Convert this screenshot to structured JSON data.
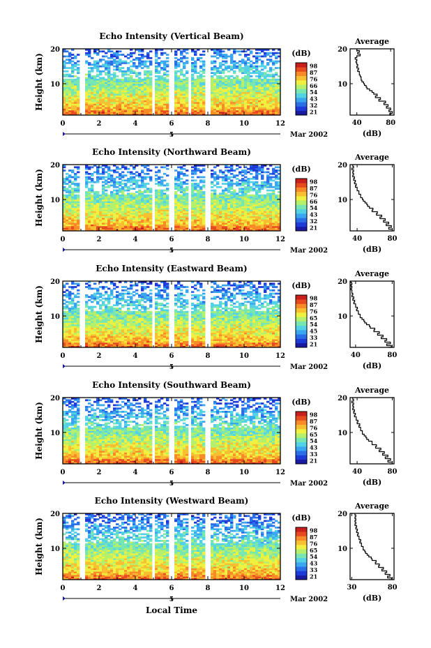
{
  "figure": {
    "xlabel": "Local Time",
    "date_label": "Mar 2002",
    "day_label": "5"
  },
  "chart_data": [
    {
      "type": "heatmap",
      "title": "Echo Intensity (Vertical Beam)",
      "xlabel": "Local Time",
      "ylabel": "Height (km)",
      "xlim": [
        0,
        12
      ],
      "ylim": [
        1,
        20
      ],
      "x_ticks": [
        "0",
        "2",
        "4",
        "6",
        "8",
        "10",
        "12"
      ],
      "y_ticks": [
        "10",
        "20"
      ],
      "colorbar_label": "(dB)",
      "colorbar_ticks": [
        "21",
        "32",
        "43",
        "54",
        "66",
        "76",
        "87",
        "98"
      ],
      "data_gaps_hours": [
        [
          1.0,
          1.2
        ],
        [
          4.9,
          5.1
        ],
        [
          5.9,
          6.1
        ],
        [
          6.9,
          7.1
        ],
        [
          7.9,
          8.1
        ]
      ],
      "profile": {
        "title": "Average",
        "xlabel": "(dB)",
        "xlim": [
          32,
          84
        ],
        "x_ticks": [
          "40",
          "80"
        ],
        "y_ticks": [
          "10",
          "20"
        ],
        "points": [
          [
            80,
            1
          ],
          [
            79,
            1.5
          ],
          [
            82,
            2
          ],
          [
            78,
            2.5
          ],
          [
            80,
            3
          ],
          [
            75,
            3.5
          ],
          [
            77,
            4
          ],
          [
            72,
            4.5
          ],
          [
            74,
            5
          ],
          [
            66,
            5.5
          ],
          [
            68,
            6
          ],
          [
            62,
            6.5
          ],
          [
            64,
            7
          ],
          [
            60,
            7.5
          ],
          [
            58,
            8
          ],
          [
            55,
            8.5
          ],
          [
            52,
            9
          ],
          [
            51,
            9.5
          ],
          [
            49,
            10
          ],
          [
            48,
            10.5
          ],
          [
            46,
            11
          ],
          [
            45,
            11.5
          ],
          [
            45,
            12
          ],
          [
            44,
            12.5
          ],
          [
            43,
            13
          ],
          [
            43,
            13.5
          ],
          [
            41,
            14
          ],
          [
            42,
            14.5
          ],
          [
            40,
            15
          ],
          [
            41,
            15.5
          ],
          [
            40,
            16
          ],
          [
            39,
            16.5
          ],
          [
            40,
            17
          ],
          [
            38,
            17.5
          ],
          [
            40,
            18
          ],
          [
            44,
            18.5
          ],
          [
            41,
            19
          ],
          [
            43,
            19.5
          ],
          [
            40,
            20
          ]
        ]
      }
    },
    {
      "type": "heatmap",
      "title": "Echo Intensity (Northward Beam)",
      "xlabel": "Local Time",
      "ylabel": "Height (km)",
      "xlim": [
        0,
        12
      ],
      "ylim": [
        1,
        20
      ],
      "x_ticks": [
        "0",
        "2",
        "4",
        "6",
        "8",
        "10",
        "12"
      ],
      "y_ticks": [
        "10",
        "20"
      ],
      "colorbar_label": "(dB)",
      "colorbar_ticks": [
        "21",
        "32",
        "43",
        "54",
        "66",
        "76",
        "87",
        "98"
      ],
      "data_gaps_hours": [
        [
          1.0,
          1.2
        ],
        [
          4.9,
          5.1
        ],
        [
          5.9,
          6.1
        ],
        [
          6.9,
          7.1
        ],
        [
          7.9,
          8.1
        ]
      ],
      "profile": {
        "title": "Average",
        "xlabel": "(dB)",
        "xlim": [
          32,
          82
        ],
        "x_ticks": [
          "40",
          "80"
        ],
        "y_ticks": [
          "10",
          "20"
        ],
        "points": [
          [
            78,
            1
          ],
          [
            80,
            1.5
          ],
          [
            76,
            2
          ],
          [
            79,
            2.5
          ],
          [
            73,
            3
          ],
          [
            76,
            3.5
          ],
          [
            70,
            4
          ],
          [
            72,
            4.5
          ],
          [
            66,
            5
          ],
          [
            68,
            5.5
          ],
          [
            62,
            6
          ],
          [
            63,
            6.5
          ],
          [
            57,
            7
          ],
          [
            58,
            7.5
          ],
          [
            54,
            8
          ],
          [
            52,
            8.5
          ],
          [
            51,
            9
          ],
          [
            49,
            9.5
          ],
          [
            47,
            10
          ],
          [
            46,
            10.5
          ],
          [
            44,
            11
          ],
          [
            44,
            11.5
          ],
          [
            42,
            12
          ],
          [
            42,
            12.5
          ],
          [
            40,
            13
          ],
          [
            40,
            13.5
          ],
          [
            38,
            14
          ],
          [
            39,
            14.5
          ],
          [
            37,
            15
          ],
          [
            38,
            15.5
          ],
          [
            36,
            16
          ],
          [
            37,
            16.5
          ],
          [
            35,
            17
          ],
          [
            36,
            17.5
          ],
          [
            35,
            18
          ],
          [
            36,
            18.5
          ],
          [
            34,
            19
          ],
          [
            36,
            19.5
          ],
          [
            35,
            20
          ]
        ]
      }
    },
    {
      "type": "heatmap",
      "title": "Echo Intensity (Eastward Beam)",
      "xlabel": "Local Time",
      "ylabel": "Height (km)",
      "xlim": [
        0,
        12
      ],
      "ylim": [
        1,
        20
      ],
      "x_ticks": [
        "0",
        "2",
        "4",
        "6",
        "8",
        "10",
        "12"
      ],
      "y_ticks": [
        "10",
        "20"
      ],
      "colorbar_label": "(dB)",
      "colorbar_ticks": [
        "21",
        "33",
        "45",
        "54",
        "65",
        "76",
        "87",
        "98"
      ],
      "data_gaps_hours": [
        [
          1.0,
          1.2
        ],
        [
          4.9,
          5.1
        ],
        [
          5.9,
          6.1
        ],
        [
          6.9,
          7.1
        ],
        [
          7.9,
          8.1
        ]
      ],
      "profile": {
        "title": "Average",
        "xlabel": "(dB)",
        "xlim": [
          34,
          82
        ],
        "x_ticks": [
          "40",
          "80"
        ],
        "y_ticks": [
          "10",
          "20"
        ],
        "points": [
          [
            76,
            1
          ],
          [
            79,
            1.5
          ],
          [
            74,
            2
          ],
          [
            78,
            2.5
          ],
          [
            72,
            3
          ],
          [
            74,
            3.5
          ],
          [
            68,
            4
          ],
          [
            70,
            4.5
          ],
          [
            64,
            5
          ],
          [
            66,
            5.5
          ],
          [
            60,
            6
          ],
          [
            61,
            6.5
          ],
          [
            56,
            7
          ],
          [
            55,
            7.5
          ],
          [
            52,
            8
          ],
          [
            50,
            8.5
          ],
          [
            49,
            9
          ],
          [
            47,
            9.5
          ],
          [
            45,
            10
          ],
          [
            45,
            10.5
          ],
          [
            43,
            11
          ],
          [
            43,
            11.5
          ],
          [
            41,
            12
          ],
          [
            42,
            12.5
          ],
          [
            40,
            13
          ],
          [
            40,
            13.5
          ],
          [
            38,
            14
          ],
          [
            39,
            14.5
          ],
          [
            37,
            15
          ],
          [
            38,
            15.5
          ],
          [
            36,
            16
          ],
          [
            37,
            16.5
          ],
          [
            36,
            17
          ],
          [
            36,
            17.5
          ],
          [
            35,
            18
          ],
          [
            36,
            18.5
          ],
          [
            35,
            19
          ],
          [
            36,
            19.5
          ],
          [
            35,
            20
          ]
        ]
      }
    },
    {
      "type": "heatmap",
      "title": "Echo Intensity (Southward Beam)",
      "xlabel": "Local Time",
      "ylabel": "Height (km)",
      "xlim": [
        0,
        12
      ],
      "ylim": [
        1,
        20
      ],
      "x_ticks": [
        "0",
        "2",
        "4",
        "6",
        "8",
        "10",
        "12"
      ],
      "y_ticks": [
        "10",
        "20"
      ],
      "colorbar_label": "(dB)",
      "colorbar_ticks": [
        "21",
        "33",
        "43",
        "54",
        "65",
        "76",
        "87",
        "98"
      ],
      "data_gaps_hours": [
        [
          1.0,
          1.2
        ],
        [
          4.9,
          5.1
        ],
        [
          5.9,
          6.1
        ],
        [
          6.9,
          7.1
        ],
        [
          7.9,
          8.1
        ]
      ],
      "profile": {
        "title": "Average",
        "xlabel": "(dB)",
        "xlim": [
          32,
          82
        ],
        "x_ticks": [
          "40",
          "80"
        ],
        "y_ticks": [
          "10",
          "20"
        ],
        "points": [
          [
            77,
            1
          ],
          [
            80,
            1.5
          ],
          [
            75,
            2
          ],
          [
            78,
            2.5
          ],
          [
            72,
            3
          ],
          [
            75,
            3.5
          ],
          [
            69,
            4
          ],
          [
            71,
            4.5
          ],
          [
            65,
            5
          ],
          [
            67,
            5.5
          ],
          [
            61,
            6
          ],
          [
            62,
            6.5
          ],
          [
            57,
            7
          ],
          [
            57,
            7.5
          ],
          [
            53,
            8
          ],
          [
            51,
            8.5
          ],
          [
            50,
            9
          ],
          [
            48,
            9.5
          ],
          [
            46,
            10
          ],
          [
            46,
            10.5
          ],
          [
            44,
            11
          ],
          [
            44,
            11.5
          ],
          [
            42,
            12
          ],
          [
            43,
            12.5
          ],
          [
            40,
            13
          ],
          [
            41,
            13.5
          ],
          [
            39,
            14
          ],
          [
            39,
            14.5
          ],
          [
            37,
            15
          ],
          [
            38,
            15.5
          ],
          [
            36,
            16
          ],
          [
            37,
            16.5
          ],
          [
            35,
            17
          ],
          [
            36,
            17.5
          ],
          [
            35,
            18
          ],
          [
            36,
            18.5
          ],
          [
            34,
            19
          ],
          [
            36,
            19.5
          ],
          [
            35,
            20
          ]
        ]
      }
    },
    {
      "type": "heatmap",
      "title": "Echo Intensity (Westward Beam)",
      "xlabel": "Local Time",
      "ylabel": "Height (km)",
      "xlim": [
        0,
        12
      ],
      "ylim": [
        1,
        20
      ],
      "x_ticks": [
        "0",
        "2",
        "4",
        "6",
        "8",
        "10",
        "12"
      ],
      "y_ticks": [
        "10",
        "20"
      ],
      "colorbar_label": "(dB)",
      "colorbar_ticks": [
        "21",
        "33",
        "43",
        "54",
        "65",
        "76",
        "87",
        "98"
      ],
      "data_gaps_hours": [
        [
          1.0,
          1.2
        ],
        [
          4.9,
          5.1
        ],
        [
          5.9,
          6.1
        ],
        [
          6.9,
          7.1
        ],
        [
          7.9,
          8.1
        ]
      ],
      "profile": {
        "title": "Average",
        "xlabel": "(dB)",
        "xlim": [
          28,
          82
        ],
        "x_ticks": [
          "30",
          "80"
        ],
        "y_ticks": [
          "10",
          "20"
        ],
        "points": [
          [
            76,
            1
          ],
          [
            79,
            1.5
          ],
          [
            74,
            2
          ],
          [
            77,
            2.5
          ],
          [
            71,
            3
          ],
          [
            73,
            3.5
          ],
          [
            67,
            4
          ],
          [
            69,
            4.5
          ],
          [
            63,
            5
          ],
          [
            64,
            5.5
          ],
          [
            59,
            6
          ],
          [
            60,
            6.5
          ],
          [
            55,
            7
          ],
          [
            54,
            7.5
          ],
          [
            51,
            8
          ],
          [
            49,
            8.5
          ],
          [
            47,
            9
          ],
          [
            46,
            9.5
          ],
          [
            44,
            10
          ],
          [
            44,
            10.5
          ],
          [
            42,
            11
          ],
          [
            42,
            11.5
          ],
          [
            40,
            12
          ],
          [
            41,
            12.5
          ],
          [
            39,
            13
          ],
          [
            39,
            13.5
          ],
          [
            37,
            14
          ],
          [
            38,
            14.5
          ],
          [
            36,
            15
          ],
          [
            37,
            15.5
          ],
          [
            35,
            16
          ],
          [
            36,
            16.5
          ],
          [
            34,
            17
          ],
          [
            35,
            17.5
          ],
          [
            34,
            18
          ],
          [
            35,
            18.5
          ],
          [
            34,
            19
          ],
          [
            35,
            19.5
          ],
          [
            34,
            20
          ]
        ]
      }
    }
  ],
  "colormap": [
    "#1a1aa0",
    "#1e3ad8",
    "#2a6ee8",
    "#3aa6f0",
    "#52d2e4",
    "#78e6b0",
    "#b4f06c",
    "#f0f040",
    "#f8c030",
    "#f88a28",
    "#e84a20",
    "#c81e1e"
  ]
}
